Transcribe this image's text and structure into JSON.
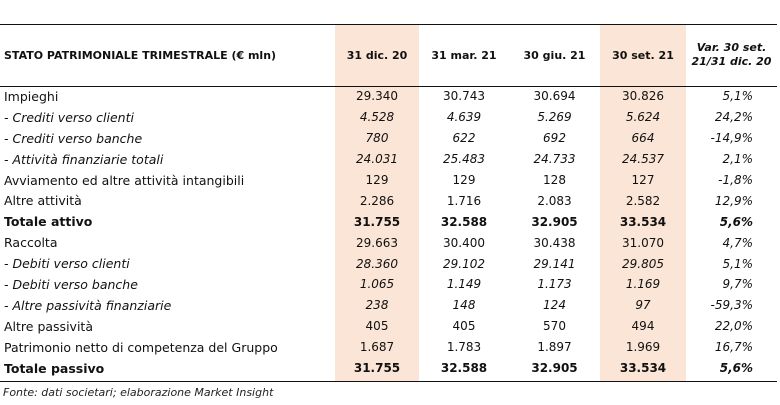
{
  "table": {
    "headers": [
      "STATO PATRIMONIALE TRIMESTRALE (€ mln)",
      "31 dic. 20",
      "31 mar. 21",
      "30 giu. 21",
      "30 set. 21",
      "Var. 30 set. 21/31 dic. 20"
    ],
    "var_header_line1": "Var. 30 set.",
    "var_header_line2": "21/31 dic. 20",
    "highlight_color": "#fbe5d6",
    "rows": [
      {
        "label": "Impieghi",
        "style": "normal",
        "values": [
          "29.340",
          "30.743",
          "30.694",
          "30.826",
          "5,1%"
        ]
      },
      {
        "label": "- Crediti verso clienti",
        "style": "italic",
        "values": [
          "4.528",
          "4.639",
          "5.269",
          "5.624",
          "24,2%"
        ]
      },
      {
        "label": "- Crediti verso banche",
        "style": "italic",
        "values": [
          "780",
          "622",
          "692",
          "664",
          "-14,9%"
        ]
      },
      {
        "label": "- Attività finanziarie totali",
        "style": "italic",
        "values": [
          "24.031",
          "25.483",
          "24.733",
          "24.537",
          "2,1%"
        ]
      },
      {
        "label": "Avviamento ed altre attività intangibili",
        "style": "normal",
        "values": [
          "129",
          "129",
          "128",
          "127",
          "-1,8%"
        ]
      },
      {
        "label": "Altre attività",
        "style": "normal",
        "values": [
          "2.286",
          "1.716",
          "2.083",
          "2.582",
          "12,9%"
        ]
      },
      {
        "label": "Totale attivo",
        "style": "bold",
        "values": [
          "31.755",
          "32.588",
          "32.905",
          "33.534",
          "5,6%"
        ]
      },
      {
        "label": "Raccolta",
        "style": "normal",
        "values": [
          "29.663",
          "30.400",
          "30.438",
          "31.070",
          "4,7%"
        ]
      },
      {
        "label": "- Debiti verso clienti",
        "style": "italic",
        "values": [
          "28.360",
          "29.102",
          "29.141",
          "29.805",
          "5,1%"
        ]
      },
      {
        "label": "- Debiti verso banche",
        "style": "italic",
        "values": [
          "1.065",
          "1.149",
          "1.173",
          "1.169",
          "9,7%"
        ]
      },
      {
        "label": "- Altre passività finanziarie",
        "style": "italic",
        "values": [
          "238",
          "148",
          "124",
          "97",
          "-59,3%"
        ]
      },
      {
        "label": "Altre passività",
        "style": "normal",
        "values": [
          "405",
          "405",
          "570",
          "494",
          "22,0%"
        ]
      },
      {
        "label": "Patrimonio netto di competenza del Gruppo",
        "style": "normal",
        "values": [
          "1.687",
          "1.783",
          "1.897",
          "1.969",
          "16,7%"
        ]
      },
      {
        "label": "Totale passivo",
        "style": "bold",
        "values": [
          "31.755",
          "32.588",
          "32.905",
          "33.534",
          "5,6%"
        ]
      }
    ]
  },
  "source": "Fonte: dati societari; elaborazione Market Insight"
}
